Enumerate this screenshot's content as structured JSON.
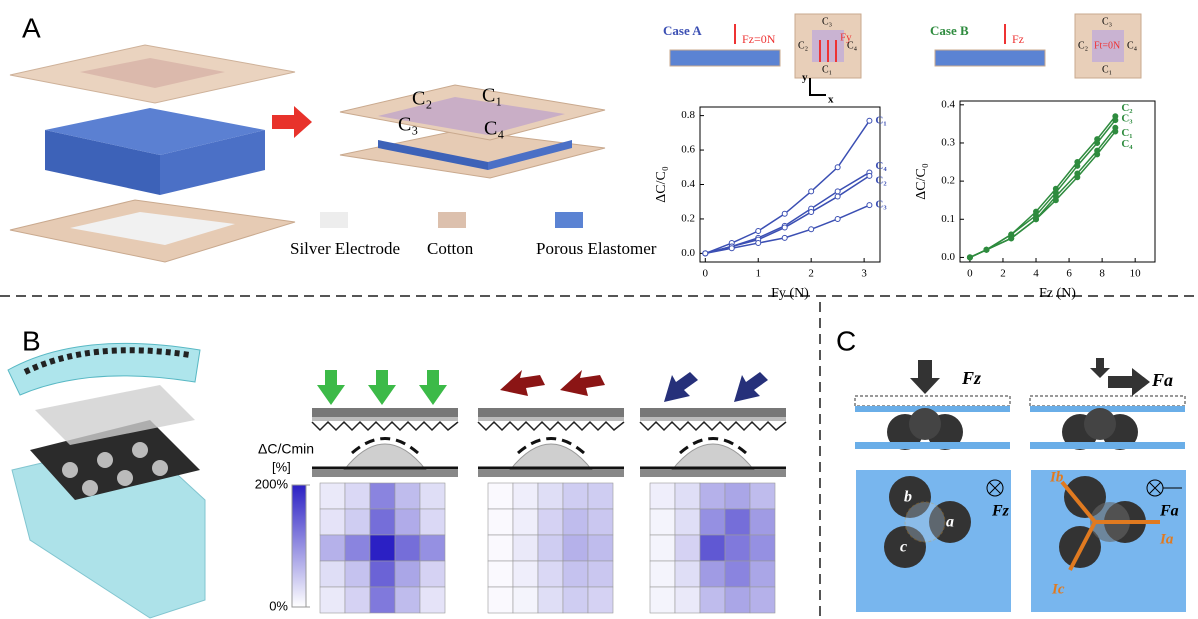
{
  "panels": {
    "a": "A",
    "b": "B",
    "c": "C"
  },
  "panel_a": {
    "electrodes": [
      "C₂",
      "C₁",
      "C₃",
      "C₄"
    ],
    "legend": [
      "Silver Electrode",
      "Cotton",
      "Porous Elastomer"
    ]
  },
  "chart_data": [
    {
      "type": "line",
      "case": "Case A",
      "force_label": "Fz=0N",
      "shear_label": "Fy",
      "pads": [
        "C₃",
        "C₂",
        "C₄",
        "C₁"
      ],
      "axes": [
        "y",
        "x"
      ],
      "xlabel": "Fy (N)",
      "ylabel": "ΔC/C₀",
      "x": [
        0,
        0.5,
        1,
        1.5,
        2,
        2.5,
        3.1
      ],
      "series": [
        {
          "name": "C₁",
          "color": "#3b4fb3",
          "values": [
            0,
            0.06,
            0.13,
            0.23,
            0.36,
            0.5,
            0.77
          ]
        },
        {
          "name": "C₄",
          "color": "#3b4fb3",
          "values": [
            0,
            0.04,
            0.09,
            0.16,
            0.26,
            0.36,
            0.47
          ]
        },
        {
          "name": "C₂",
          "color": "#3b4fb3",
          "values": [
            0,
            0.04,
            0.08,
            0.15,
            0.24,
            0.33,
            0.45
          ]
        },
        {
          "name": "C₃",
          "color": "#3b4fb3",
          "values": [
            0,
            0.03,
            0.06,
            0.09,
            0.14,
            0.2,
            0.28
          ]
        }
      ],
      "xlim": [
        -0.1,
        3.3
      ],
      "xticks": [
        0,
        1,
        2,
        3
      ],
      "ylim": [
        -0.05,
        0.85
      ],
      "yticks": [
        {
          "value": 0,
          "label": "0.0"
        },
        0.2,
        0.4,
        0.6,
        0.8
      ],
      "grid": false
    },
    {
      "type": "line",
      "case": "Case B",
      "force_label": "Fz",
      "shear_label": "Ft=0N",
      "pads": [
        "C₃",
        "C₂",
        "C₄",
        "C₁"
      ],
      "xlabel": "Fz (N)",
      "ylabel": "ΔC/C₀",
      "x": [
        0,
        1,
        2.5,
        4,
        5.2,
        6.5,
        7.7,
        8.8
      ],
      "series": [
        {
          "name": "C₂",
          "color": "#2e8b3e",
          "values": [
            0,
            0.02,
            0.06,
            0.12,
            0.18,
            0.25,
            0.31,
            0.37
          ]
        },
        {
          "name": "C₃",
          "color": "#2e8b3e",
          "values": [
            0,
            0.02,
            0.06,
            0.11,
            0.17,
            0.24,
            0.3,
            0.36
          ]
        },
        {
          "name": "C₁",
          "color": "#2e8b3e",
          "values": [
            0,
            0.02,
            0.05,
            0.1,
            0.16,
            0.22,
            0.28,
            0.34
          ]
        },
        {
          "name": "C₄",
          "color": "#2e8b3e",
          "values": [
            0,
            0.02,
            0.05,
            0.1,
            0.15,
            0.21,
            0.27,
            0.33
          ]
        }
      ],
      "xlim": [
        -0.6,
        11.2
      ],
      "xticks": [
        0,
        2,
        4,
        6,
        8,
        10
      ],
      "ylim": [
        -0.012,
        0.41
      ],
      "yticks": [
        {
          "value": 0,
          "label": "0.0"
        },
        0.1,
        0.2,
        0.3,
        0.4
      ],
      "grid": false
    },
    {
      "type": "heatmap",
      "zlim": [
        0,
        200
      ],
      "colormap": [
        "#ffffff",
        "#2b20c4"
      ],
      "colorbar": {
        "label": "ΔC/Cmin",
        "unit": "[%]",
        "ticks": [
          {
            "value": 200,
            "label": "200%"
          },
          {
            "value": 0,
            "label": "0%"
          }
        ]
      },
      "z": [
        [
          20,
          35,
          110,
          60,
          30
        ],
        [
          25,
          45,
          130,
          75,
          35
        ],
        [
          70,
          110,
          200,
          130,
          100
        ],
        [
          30,
          55,
          140,
          80,
          40
        ],
        [
          20,
          40,
          120,
          60,
          25
        ]
      ]
    },
    {
      "type": "heatmap",
      "zlim": [
        0,
        200
      ],
      "colormap": [
        "#ffffff",
        "#2b20c4"
      ],
      "z": [
        [
          5,
          15,
          30,
          45,
          45
        ],
        [
          5,
          15,
          40,
          60,
          50
        ],
        [
          5,
          20,
          45,
          70,
          60
        ],
        [
          5,
          15,
          35,
          55,
          50
        ],
        [
          5,
          10,
          30,
          45,
          40
        ]
      ]
    },
    {
      "type": "heatmap",
      "zlim": [
        0,
        200
      ],
      "colormap": [
        "#ffffff",
        "#2b20c4"
      ],
      "z": [
        [
          15,
          30,
          70,
          80,
          60
        ],
        [
          10,
          30,
          100,
          130,
          90
        ],
        [
          10,
          40,
          150,
          120,
          100
        ],
        [
          10,
          30,
          90,
          110,
          80
        ],
        [
          10,
          20,
          60,
          80,
          70
        ]
      ]
    }
  ],
  "panel_c": {
    "left": {
      "force": "Fz",
      "field": "Fz",
      "electrodes": [
        "b",
        "a",
        "c"
      ]
    },
    "right": {
      "force": "Fa",
      "field": "Fa",
      "currents": [
        "Ib",
        "Ia",
        "Ic"
      ]
    }
  }
}
